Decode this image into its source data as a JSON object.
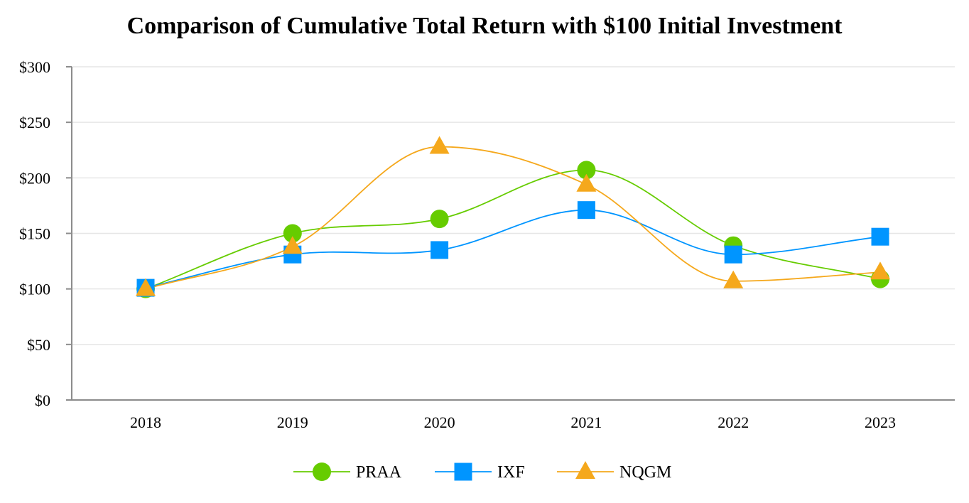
{
  "chart_data": {
    "type": "line",
    "title": "Comparison of Cumulative Total Return with $100 Initial Investment",
    "xlabel": "",
    "ylabel": "",
    "categories": [
      "2018",
      "2019",
      "2020",
      "2021",
      "2022",
      "2023"
    ],
    "ylim": [
      0,
      300
    ],
    "yticks": [
      0,
      50,
      100,
      150,
      200,
      250,
      300
    ],
    "ytick_labels": [
      "$0",
      "$50",
      "$100",
      "$150",
      "$200",
      "$250",
      "$300"
    ],
    "grid": true,
    "legend_position": "bottom-center",
    "series": [
      {
        "name": "PRAA",
        "marker": "circle",
        "color": "#66cc00",
        "values": [
          100,
          150,
          163,
          207,
          139,
          109
        ]
      },
      {
        "name": "IXF",
        "marker": "square",
        "color": "#0095ff",
        "values": [
          101,
          131,
          135,
          171,
          131,
          147
        ]
      },
      {
        "name": "NQGM",
        "marker": "triangle",
        "color": "#f5a81c",
        "values": [
          100,
          138,
          228,
          194,
          107,
          115
        ]
      }
    ]
  }
}
